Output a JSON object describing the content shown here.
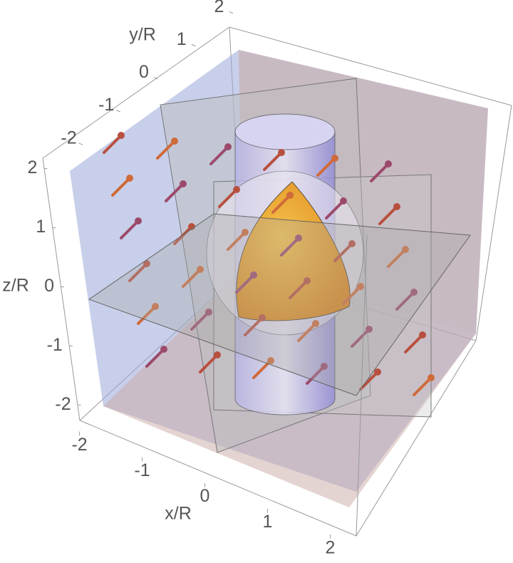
{
  "chart_data": {
    "type": "vector3d",
    "xlabel": "x/R",
    "ylabel": "y/R",
    "zlabel": "z/R",
    "xlim": [
      -2.2,
      2.2
    ],
    "ylim": [
      -2.2,
      2.2
    ],
    "zlim": [
      -2.2,
      2.2
    ],
    "xticks": [
      -2,
      -1,
      0,
      1,
      2
    ],
    "yticks": [
      -2,
      -1,
      0,
      1,
      2
    ],
    "zticks": [
      -2,
      -1,
      0,
      1,
      2
    ]
  }
}
